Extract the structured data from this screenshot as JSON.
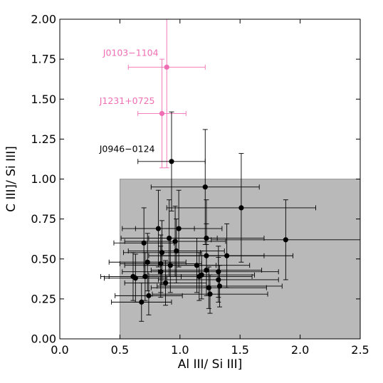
{
  "chart_data": {
    "type": "scatter",
    "xlabel": "Al III/ Si III]",
    "ylabel": "C III]/ Si III]",
    "xlim": [
      0.0,
      2.5
    ],
    "ylim": [
      0.0,
      2.0
    ],
    "xticks": [
      "0.0",
      "0.5",
      "1.0",
      "1.5",
      "2.0",
      "2.5"
    ],
    "yticks": [
      "0.00",
      "0.25",
      "0.50",
      "0.75",
      "1.00",
      "1.25",
      "1.50",
      "1.75",
      "2.00"
    ],
    "grid": false,
    "shaded_region": {
      "x": [
        0.5,
        2.5
      ],
      "y": [
        0.0,
        1.0
      ],
      "color": "#b9b9b9"
    },
    "colors": {
      "highlight": "#f06eb4",
      "normal": "#000000"
    },
    "series": [
      {
        "color": "#f06eb4",
        "points": [
          {
            "x": 0.89,
            "y": 1.7,
            "xerr": 0.32,
            "yerr": 0.63
          },
          {
            "x": 0.85,
            "y": 1.41,
            "xerr": 0.2,
            "yerr": 0.34
          }
        ]
      },
      {
        "color": "#000000",
        "points": [
          {
            "x": 0.93,
            "y": 1.11,
            "xerr": 0.28,
            "yerr": 0.31
          },
          {
            "x": 1.21,
            "y": 0.95,
            "xerr": 0.45,
            "yerr": 0.36
          },
          {
            "x": 1.51,
            "y": 0.82,
            "xerr": 0.62,
            "yerr": 0.34
          },
          {
            "x": 0.99,
            "y": 0.69,
            "xerr": 0.36,
            "yerr": 0.24
          },
          {
            "x": 0.82,
            "y": 0.69,
            "xerr": 0.3,
            "yerr": 0.24
          },
          {
            "x": 1.88,
            "y": 0.62,
            "xerr": 0.62,
            "yerr": 0.25
          },
          {
            "x": 0.91,
            "y": 0.63,
            "xerr": 0.4,
            "yerr": 0.24
          },
          {
            "x": 1.22,
            "y": 0.63,
            "xerr": 0.48,
            "yerr": 0.24
          },
          {
            "x": 0.96,
            "y": 0.61,
            "xerr": 0.42,
            "yerr": 0.22
          },
          {
            "x": 0.7,
            "y": 0.6,
            "xerr": 0.25,
            "yerr": 0.22
          },
          {
            "x": 0.97,
            "y": 0.55,
            "xerr": 0.4,
            "yerr": 0.2
          },
          {
            "x": 0.85,
            "y": 0.54,
            "xerr": 0.32,
            "yerr": 0.2
          },
          {
            "x": 1.22,
            "y": 0.52,
            "xerr": 0.48,
            "yerr": 0.2
          },
          {
            "x": 1.39,
            "y": 0.52,
            "xerr": 0.55,
            "yerr": 0.2
          },
          {
            "x": 0.73,
            "y": 0.48,
            "xerr": 0.32,
            "yerr": 0.18
          },
          {
            "x": 0.84,
            "y": 0.47,
            "xerr": 0.34,
            "yerr": 0.18
          },
          {
            "x": 0.92,
            "y": 0.46,
            "xerr": 0.38,
            "yerr": 0.17
          },
          {
            "x": 1.14,
            "y": 0.46,
            "xerr": 0.44,
            "yerr": 0.17
          },
          {
            "x": 1.22,
            "y": 0.43,
            "xerr": 0.46,
            "yerr": 0.16
          },
          {
            "x": 1.32,
            "y": 0.42,
            "xerr": 0.5,
            "yerr": 0.16
          },
          {
            "x": 0.84,
            "y": 0.42,
            "xerr": 0.32,
            "yerr": 0.16
          },
          {
            "x": 1.18,
            "y": 0.4,
            "xerr": 0.44,
            "yerr": 0.15
          },
          {
            "x": 1.16,
            "y": 0.39,
            "xerr": 0.44,
            "yerr": 0.15
          },
          {
            "x": 0.61,
            "y": 0.39,
            "xerr": 0.27,
            "yerr": 0.15
          },
          {
            "x": 0.71,
            "y": 0.39,
            "xerr": 0.3,
            "yerr": 0.15
          },
          {
            "x": 0.63,
            "y": 0.38,
            "xerr": 0.26,
            "yerr": 0.15
          },
          {
            "x": 1.32,
            "y": 0.37,
            "xerr": 0.5,
            "yerr": 0.14
          },
          {
            "x": 0.88,
            "y": 0.35,
            "xerr": 0.34,
            "yerr": 0.14
          },
          {
            "x": 1.33,
            "y": 0.33,
            "xerr": 0.52,
            "yerr": 0.13
          },
          {
            "x": 1.24,
            "y": 0.32,
            "xerr": 0.48,
            "yerr": 0.13
          },
          {
            "x": 1.25,
            "y": 0.28,
            "xerr": 0.48,
            "yerr": 0.12
          },
          {
            "x": 0.74,
            "y": 0.27,
            "xerr": 0.28,
            "yerr": 0.12
          },
          {
            "x": 0.68,
            "y": 0.23,
            "xerr": 0.25,
            "yerr": 0.12
          }
        ]
      }
    ],
    "annotations": [
      {
        "text": "J0103−1104",
        "x": 0.36,
        "y": 1.77,
        "color": "#f06eb4"
      },
      {
        "text": "J1231+0725",
        "x": 0.33,
        "y": 1.47,
        "color": "#f06eb4"
      },
      {
        "text": "J0946−0124",
        "x": 0.33,
        "y": 1.17,
        "color": "#000000"
      }
    ]
  }
}
